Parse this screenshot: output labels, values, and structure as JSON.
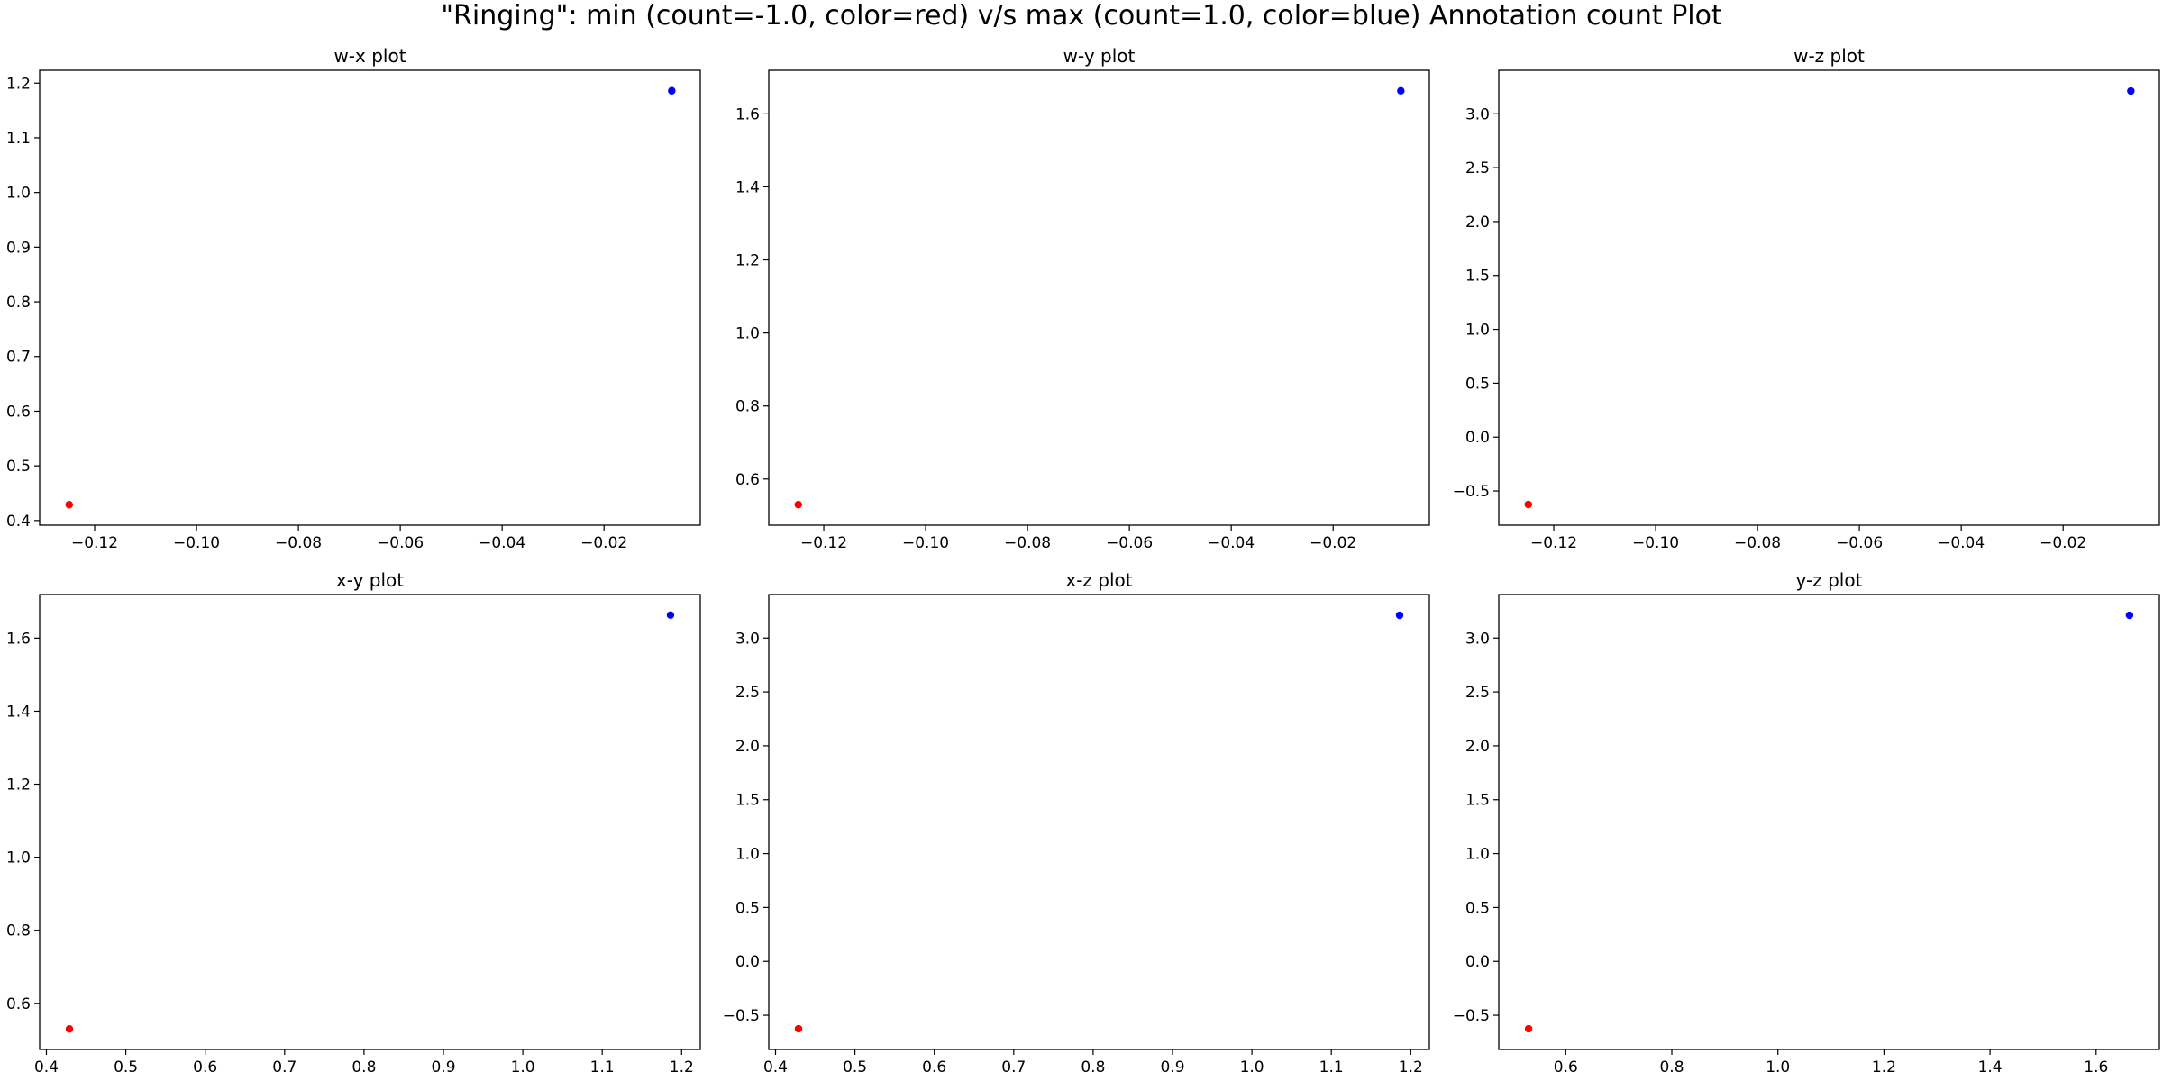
{
  "figure": {
    "title": "\"Ringing\": min (count=-1.0, color=red) v/s max (count=1.0, color=blue) Annotation count Plot"
  },
  "colors": {
    "min_point": "#ff0000",
    "max_point": "#0000ff",
    "axes": "#000000",
    "background": "#ffffff"
  },
  "chart_data": [
    {
      "type": "scatter",
      "title": "w-x plot",
      "xlabel": "",
      "ylabel": "",
      "xlim": [
        -0.1308,
        -0.0011
      ],
      "ylim": [
        0.3915,
        1.2235
      ],
      "xticks": [
        -0.12,
        -0.1,
        -0.08,
        -0.06,
        -0.04,
        -0.02
      ],
      "xtick_labels": [
        "−0.12",
        "−0.10",
        "−0.08",
        "−0.06",
        "−0.04",
        "−0.02"
      ],
      "yticks": [
        0.4,
        0.5,
        0.6,
        0.7,
        0.8,
        0.9,
        1.0,
        1.1,
        1.2
      ],
      "ytick_labels": [
        "0.4",
        "0.5",
        "0.6",
        "0.7",
        "0.8",
        "0.9",
        "1.0",
        "1.1",
        "1.2"
      ],
      "points": [
        {
          "x": -0.125,
          "y": 0.429,
          "color": "red"
        },
        {
          "x": -0.0067,
          "y": 1.186,
          "color": "blue"
        }
      ],
      "grid": false
    },
    {
      "type": "scatter",
      "title": "w-y plot",
      "xlabel": "",
      "ylabel": "",
      "xlim": [
        -0.1308,
        -0.0011
      ],
      "ylim": [
        0.4737,
        1.7193
      ],
      "xticks": [
        -0.12,
        -0.1,
        -0.08,
        -0.06,
        -0.04,
        -0.02
      ],
      "xtick_labels": [
        "−0.12",
        "−0.10",
        "−0.08",
        "−0.06",
        "−0.04",
        "−0.02"
      ],
      "yticks": [
        0.6,
        0.8,
        1.0,
        1.2,
        1.4,
        1.6
      ],
      "ytick_labels": [
        "0.6",
        "0.8",
        "1.0",
        "1.2",
        "1.4",
        "1.6"
      ],
      "points": [
        {
          "x": -0.125,
          "y": 0.53,
          "color": "red"
        },
        {
          "x": -0.0067,
          "y": 1.663,
          "color": "blue"
        }
      ],
      "grid": false
    },
    {
      "type": "scatter",
      "title": "w-z plot",
      "xlabel": "",
      "ylabel": "",
      "xlim": [
        -0.1308,
        -0.0011
      ],
      "ylim": [
        -0.8171,
        3.4034
      ],
      "xticks": [
        -0.12,
        -0.1,
        -0.08,
        -0.06,
        -0.04,
        -0.02
      ],
      "xtick_labels": [
        "−0.12",
        "−0.10",
        "−0.08",
        "−0.06",
        "−0.04",
        "−0.02"
      ],
      "yticks": [
        -0.5,
        0.0,
        0.5,
        1.0,
        1.5,
        2.0,
        2.5,
        3.0
      ],
      "ytick_labels": [
        "−0.5",
        "0.0",
        "0.5",
        "1.0",
        "1.5",
        "2.0",
        "2.5",
        "3.0"
      ],
      "points": [
        {
          "x": -0.125,
          "y": -0.625,
          "color": "red"
        },
        {
          "x": -0.0067,
          "y": 3.211,
          "color": "blue"
        }
      ],
      "grid": false
    },
    {
      "type": "scatter",
      "title": "x-y plot",
      "xlabel": "",
      "ylabel": "",
      "xlim": [
        0.3915,
        1.2235
      ],
      "ylim": [
        0.4737,
        1.7193
      ],
      "xticks": [
        0.4,
        0.5,
        0.6,
        0.7,
        0.8,
        0.9,
        1.0,
        1.1,
        1.2
      ],
      "xtick_labels": [
        "0.4",
        "0.5",
        "0.6",
        "0.7",
        "0.8",
        "0.9",
        "1.0",
        "1.1",
        "1.2"
      ],
      "yticks": [
        0.6,
        0.8,
        1.0,
        1.2,
        1.4,
        1.6
      ],
      "ytick_labels": [
        "0.6",
        "0.8",
        "1.0",
        "1.2",
        "1.4",
        "1.6"
      ],
      "points": [
        {
          "x": 0.429,
          "y": 0.53,
          "color": "red"
        },
        {
          "x": 1.186,
          "y": 1.663,
          "color": "blue"
        }
      ],
      "grid": false
    },
    {
      "type": "scatter",
      "title": "x-z plot",
      "xlabel": "",
      "ylabel": "",
      "xlim": [
        0.3915,
        1.2235
      ],
      "ylim": [
        -0.8171,
        3.4034
      ],
      "xticks": [
        0.4,
        0.5,
        0.6,
        0.7,
        0.8,
        0.9,
        1.0,
        1.1,
        1.2
      ],
      "xtick_labels": [
        "0.4",
        "0.5",
        "0.6",
        "0.7",
        "0.8",
        "0.9",
        "1.0",
        "1.1",
        "1.2"
      ],
      "yticks": [
        -0.5,
        0.0,
        0.5,
        1.0,
        1.5,
        2.0,
        2.5,
        3.0
      ],
      "ytick_labels": [
        "−0.5",
        "0.0",
        "0.5",
        "1.0",
        "1.5",
        "2.0",
        "2.5",
        "3.0"
      ],
      "points": [
        {
          "x": 0.429,
          "y": -0.625,
          "color": "red"
        },
        {
          "x": 1.186,
          "y": 3.211,
          "color": "blue"
        }
      ],
      "grid": false
    },
    {
      "type": "scatter",
      "title": "y-z plot",
      "xlabel": "",
      "ylabel": "",
      "xlim": [
        0.4737,
        1.7193
      ],
      "ylim": [
        -0.8171,
        3.4034
      ],
      "xticks": [
        0.6,
        0.8,
        1.0,
        1.2,
        1.4,
        1.6
      ],
      "xtick_labels": [
        "0.6",
        "0.8",
        "1.0",
        "1.2",
        "1.4",
        "1.6"
      ],
      "yticks": [
        -0.5,
        0.0,
        0.5,
        1.0,
        1.5,
        2.0,
        2.5,
        3.0
      ],
      "ytick_labels": [
        "−0.5",
        "0.0",
        "0.5",
        "1.0",
        "1.5",
        "2.0",
        "2.5",
        "3.0"
      ],
      "points": [
        {
          "x": 0.53,
          "y": -0.625,
          "color": "red"
        },
        {
          "x": 1.663,
          "y": 3.211,
          "color": "blue"
        }
      ],
      "grid": false
    }
  ]
}
